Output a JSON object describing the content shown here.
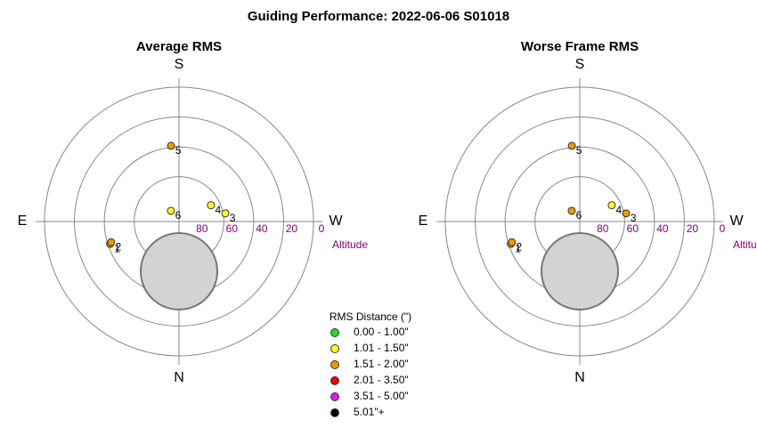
{
  "title": "Guiding Performance: 2022-06-06 S01018",
  "legend": {
    "title": "RMS Distance (\")",
    "items": [
      {
        "label": "0.00 - 1.00\"",
        "color": "#22dd22"
      },
      {
        "label": "1.01 - 1.50\"",
        "color": "#ffff22"
      },
      {
        "label": "1.51 - 2.00\"",
        "color": "#ee9900"
      },
      {
        "label": "2.01 - 3.50\"",
        "color": "#ee0000"
      },
      {
        "label": "3.51 - 5.00\"",
        "color": "#ee11ee"
      },
      {
        "label": "5.01\"+",
        "color": "#000000"
      }
    ]
  },
  "chart_data": [
    {
      "type": "polar",
      "title": "Average RMS",
      "directions": {
        "top": "S",
        "bottom": "N",
        "left": "E",
        "right": "W"
      },
      "rlabel": "Altitude",
      "rlim": [
        90,
        0
      ],
      "rticks": [
        80,
        60,
        40,
        20,
        0
      ],
      "rings": [
        60,
        40,
        20,
        0
      ],
      "points": [
        {
          "label": "1",
          "az": 72,
          "alt": 41.5,
          "color": "#ee9900"
        },
        {
          "label": "2",
          "az": 73,
          "alt": 42.5,
          "color": "#ee9900"
        },
        {
          "label": "3",
          "az": 260,
          "alt": 58.5,
          "color": "#ffff22"
        },
        {
          "label": "4",
          "az": 243,
          "alt": 66,
          "color": "#ffff22"
        },
        {
          "label": "5",
          "az": 174,
          "alt": 39,
          "color": "#ee9900"
        },
        {
          "label": "6",
          "az": 143,
          "alt": 81,
          "color": "#ffff22"
        }
      ]
    },
    {
      "type": "polar",
      "title": "Worse Frame RMS",
      "directions": {
        "top": "S",
        "bottom": "N",
        "left": "E",
        "right": "W"
      },
      "rlabel": "Altitude",
      "rlim": [
        90,
        0
      ],
      "rticks": [
        80,
        60,
        40,
        20,
        0
      ],
      "rings": [
        60,
        40,
        20,
        0
      ],
      "points": [
        {
          "label": "1",
          "az": 72,
          "alt": 41.5,
          "color": "#ee9900"
        },
        {
          "label": "2",
          "az": 73,
          "alt": 42.5,
          "color": "#ee9900"
        },
        {
          "label": "3",
          "az": 260,
          "alt": 58.5,
          "color": "#ee9900"
        },
        {
          "label": "4",
          "az": 243,
          "alt": 66,
          "color": "#ffff22"
        },
        {
          "label": "5",
          "az": 174,
          "alt": 39,
          "color": "#ee9900"
        },
        {
          "label": "6",
          "az": 143,
          "alt": 81,
          "color": "#ee9900"
        }
      ]
    }
  ]
}
